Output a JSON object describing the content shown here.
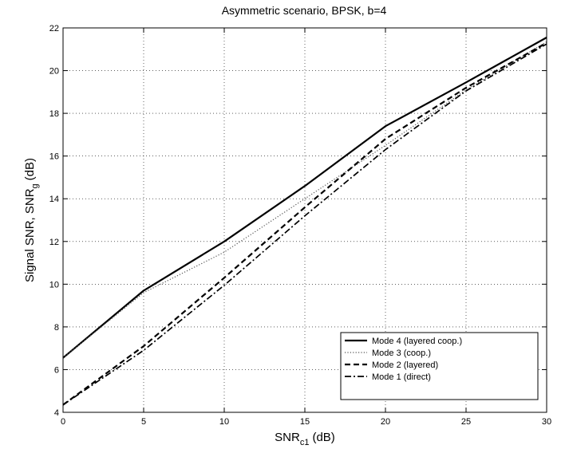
{
  "chart_data": {
    "type": "line",
    "title": "Asymmetric scenario, BPSK, b=4",
    "xlabel": {
      "main": "SNR",
      "sub": "c1",
      "unit": "(dB)"
    },
    "ylabel": {
      "main": "Signal SNR, SNR",
      "sub": "g",
      "unit": "(dB)"
    },
    "xlim": [
      0,
      30
    ],
    "ylim": [
      4,
      22
    ],
    "xticks": [
      0,
      5,
      10,
      15,
      20,
      25,
      30
    ],
    "yticks": [
      4,
      6,
      8,
      10,
      12,
      14,
      16,
      18,
      20,
      22
    ],
    "grid": true,
    "legend_position": "lower-right",
    "series": [
      {
        "name": "Mode 4 (layered coop.)",
        "style": "solid",
        "x": [
          0,
          5,
          10,
          15,
          20,
          25,
          30
        ],
        "y": [
          6.55,
          9.7,
          12.0,
          14.6,
          17.4,
          19.45,
          21.55
        ]
      },
      {
        "name": "Mode 3 (coop.)",
        "style": "dotted",
        "x": [
          0,
          5,
          10,
          15,
          20,
          25,
          30
        ],
        "y": [
          6.55,
          9.6,
          11.5,
          14.0,
          16.5,
          19.1,
          21.35
        ]
      },
      {
        "name": "Mode 2 (layered)",
        "style": "dashed",
        "x": [
          0,
          5,
          10,
          15,
          20,
          25,
          30
        ],
        "y": [
          4.35,
          7.1,
          10.3,
          13.6,
          16.8,
          19.2,
          21.3
        ]
      },
      {
        "name": "Mode 1 (direct)",
        "style": "dashdot",
        "x": [
          0,
          5,
          10,
          15,
          20,
          25,
          30
        ],
        "y": [
          4.35,
          6.9,
          9.95,
          13.2,
          16.3,
          19.05,
          21.25
        ]
      }
    ]
  }
}
